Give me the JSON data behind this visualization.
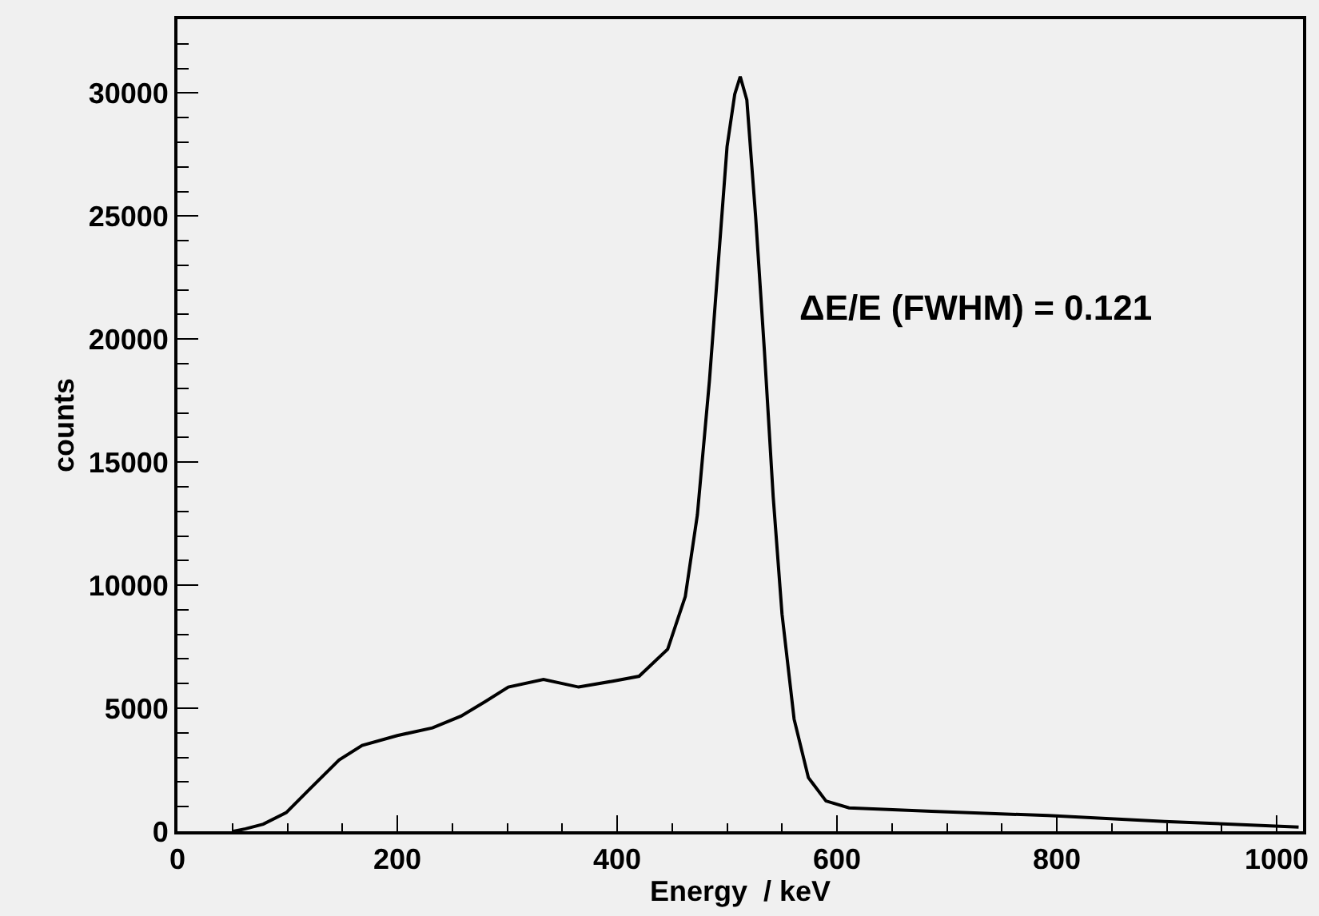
{
  "chart_data": {
    "type": "line",
    "xlabel": "Energy  / keV",
    "ylabel": "counts",
    "annotations": [
      "ΔE/E (FWHM) = 0.121"
    ],
    "xlim": [
      0,
      1024
    ],
    "xticks": [
      0,
      200,
      400,
      600,
      800,
      1000
    ],
    "ylim": [
      0,
      33000
    ],
    "yticks": [
      0,
      5000,
      10000,
      15000,
      20000,
      25000,
      30000
    ],
    "grid": false,
    "marker": "none",
    "line_style": "solid",
    "series": [
      {
        "color": "#000000",
        "x": [
          51,
          62,
          78,
          99,
          120,
          147,
          168,
          200,
          232,
          258,
          280,
          301,
          333,
          365,
          396,
          420,
          446,
          462,
          473,
          484,
          492,
          500,
          507,
          512,
          518,
          526,
          534,
          542,
          550,
          561,
          574,
          590,
          611,
          686,
          792,
          898,
          1020
        ],
        "values": [
          0,
          100,
          290,
          760,
          1700,
          2900,
          3490,
          3890,
          4200,
          4680,
          5270,
          5860,
          6170,
          5860,
          6100,
          6300,
          7400,
          9540,
          12860,
          18320,
          23070,
          27820,
          29950,
          30670,
          29720,
          24970,
          19510,
          13580,
          8830,
          4560,
          2180,
          1230,
          950,
          810,
          640,
          400,
          170
        ]
      }
    ]
  }
}
